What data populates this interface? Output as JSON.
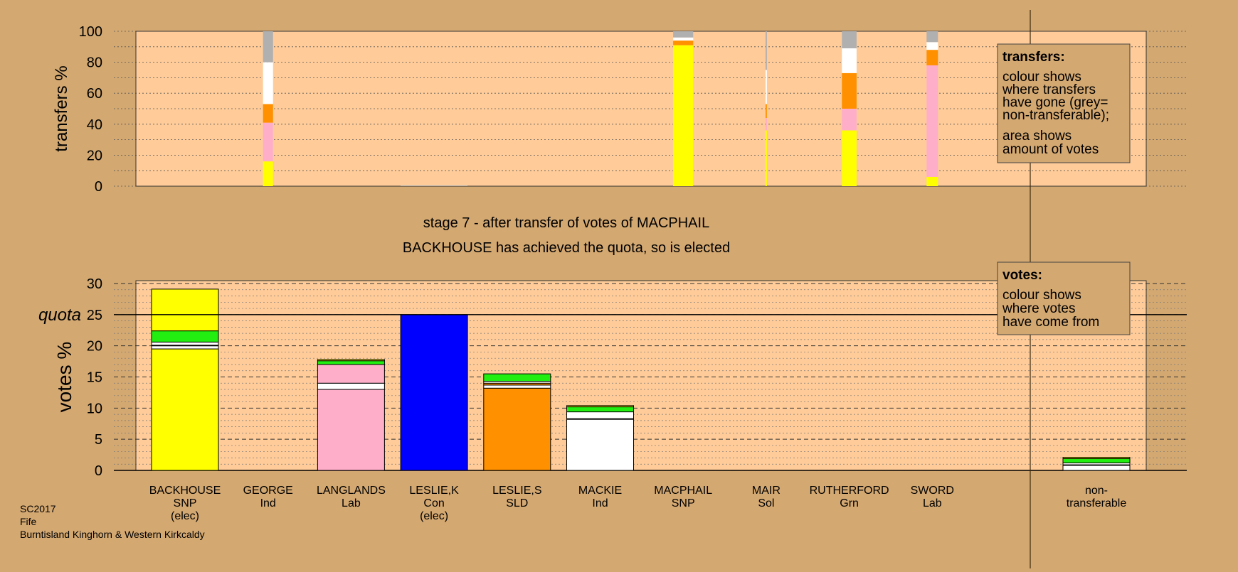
{
  "colors": {
    "background": "#d4a871",
    "plot_bg": "#ffcc99",
    "SNP": "#ffff00",
    "Lab": "#ffaec9",
    "Con": "#0000ff",
    "SLD": "#ff9000",
    "Ind": "#ffffff",
    "Grn": "#22ee11",
    "non_transferable": "#b0b0b0"
  },
  "headline": {
    "stage": "stage 7 - after transfer of votes of MACPHAIL",
    "result": "BACKHOUSE has achieved the quota, so is elected"
  },
  "footer": {
    "line1": "SC2017",
    "line2": "Fife",
    "line3": "Burntisland Kinghorn & Western Kirkcaldy"
  },
  "legend_transfers": {
    "title": "transfers:",
    "lines": [
      "colour shows",
      "where transfers",
      "have gone (grey=",
      "non-transferable);",
      "area shows",
      "amount of votes"
    ]
  },
  "legend_votes": {
    "title": "votes:",
    "lines": [
      "colour shows",
      "where votes",
      "have come from"
    ]
  },
  "chart_data": [
    {
      "type": "bar",
      "stacked": true,
      "ylabel": "transfers %",
      "ylim": [
        0,
        100
      ],
      "yticks": [
        0,
        20,
        40,
        60,
        80,
        100
      ],
      "grid": true,
      "categories": [
        "BACKHOUSE",
        "GEORGE",
        "LANGLANDS",
        "LESLIE,K",
        "LESLIE,S",
        "MACKIE",
        "MACPHAIL",
        "MAIR",
        "RUTHERFORD",
        "SWORD"
      ],
      "bars": [
        {
          "candidate": "GEORGE",
          "width_share": 0.15,
          "segments": [
            {
              "party": "SNP",
              "value": 16
            },
            {
              "party": "Lab",
              "value": 25
            },
            {
              "party": "SLD",
              "value": 12
            },
            {
              "party": "Ind",
              "value": 27
            },
            {
              "party": "non_transferable",
              "value": 20
            }
          ]
        },
        {
          "candidate": "LESLIE,K",
          "width_share": 1.0,
          "segments": [
            {
              "party": "non_transferable",
              "value": 0.5
            }
          ]
        },
        {
          "candidate": "MACPHAIL",
          "width_share": 0.3,
          "segments": [
            {
              "party": "SNP",
              "value": 91
            },
            {
              "party": "SLD",
              "value": 3
            },
            {
              "party": "Ind",
              "value": 2
            },
            {
              "party": "non_transferable",
              "value": 4
            }
          ]
        },
        {
          "candidate": "MAIR",
          "width_share": 0.02,
          "segments": [
            {
              "party": "SNP",
              "value": 36
            },
            {
              "party": "Lab",
              "value": 8
            },
            {
              "party": "SLD",
              "value": 9
            },
            {
              "party": "Ind",
              "value": 22
            },
            {
              "party": "non_transferable",
              "value": 25
            }
          ]
        },
        {
          "candidate": "RUTHERFORD",
          "width_share": 0.22,
          "segments": [
            {
              "party": "SNP",
              "value": 36
            },
            {
              "party": "Lab",
              "value": 14
            },
            {
              "party": "SLD",
              "value": 23
            },
            {
              "party": "Ind",
              "value": 16
            },
            {
              "party": "non_transferable",
              "value": 11
            }
          ]
        },
        {
          "candidate": "SWORD",
          "width_share": 0.17,
          "segments": [
            {
              "party": "SNP",
              "value": 6
            },
            {
              "party": "Lab",
              "value": 72
            },
            {
              "party": "SLD",
              "value": 10
            },
            {
              "party": "Ind",
              "value": 5
            },
            {
              "party": "non_transferable",
              "value": 7
            }
          ]
        }
      ]
    },
    {
      "type": "bar",
      "stacked": true,
      "ylabel": "votes %",
      "ylim": [
        0,
        30
      ],
      "yticks": [
        0,
        5,
        10,
        15,
        20,
        25,
        30
      ],
      "grid": true,
      "quota": 25,
      "quota_label": "quota",
      "categories": [
        {
          "name": "BACKHOUSE",
          "party": "SNP",
          "note": "(elec)"
        },
        {
          "name": "GEORGE",
          "party": "Ind",
          "note": ""
        },
        {
          "name": "LANGLANDS",
          "party": "Lab",
          "note": ""
        },
        {
          "name": "LESLIE,K",
          "party": "Con",
          "note": "(elec)"
        },
        {
          "name": "LESLIE,S",
          "party": "SLD",
          "note": ""
        },
        {
          "name": "MACKIE",
          "party": "Ind",
          "note": ""
        },
        {
          "name": "MACPHAIL",
          "party": "SNP",
          "note": ""
        },
        {
          "name": "MAIR",
          "party": "Sol",
          "note": ""
        },
        {
          "name": "RUTHERFORD",
          "party": "Grn",
          "note": ""
        },
        {
          "name": "SWORD",
          "party": "Lab",
          "note": ""
        },
        {
          "name": "non-\ntransferable",
          "party": "",
          "note": ""
        }
      ],
      "series": [
        {
          "candidate": "BACKHOUSE",
          "segments": [
            {
              "party": "SNP",
              "value": 19.5
            },
            {
              "party": "Ind",
              "value": 0.5
            },
            {
              "party": "Lab",
              "value": 0.1
            },
            {
              "party": "Ind",
              "value": 0.5
            },
            {
              "party": "Grn",
              "value": 1.8
            },
            {
              "party": "SNP",
              "value": 6.7
            }
          ]
        },
        {
          "candidate": "GEORGE",
          "segments": []
        },
        {
          "candidate": "LANGLANDS",
          "segments": [
            {
              "party": "Lab",
              "value": 13.0
            },
            {
              "party": "Ind",
              "value": 1.0
            },
            {
              "party": "Lab",
              "value": 3.0
            },
            {
              "party": "Grn",
              "value": 0.6
            },
            {
              "party": "SNP",
              "value": 0.2
            }
          ]
        },
        {
          "candidate": "LESLIE,K",
          "segments": [
            {
              "party": "Con",
              "value": 25.0
            }
          ]
        },
        {
          "candidate": "LESLIE,S",
          "segments": [
            {
              "party": "SLD",
              "value": 13.2
            },
            {
              "party": "Ind",
              "value": 0.5
            },
            {
              "party": "SLD",
              "value": 0.3
            },
            {
              "party": "Ind",
              "value": 0.3
            },
            {
              "party": "Grn",
              "value": 1.2
            }
          ]
        },
        {
          "candidate": "MACKIE",
          "segments": [
            {
              "party": "Ind",
              "value": 8.2
            },
            {
              "party": "Lab",
              "value": 0.1
            },
            {
              "party": "Ind",
              "value": 1.1
            },
            {
              "party": "Grn",
              "value": 0.8
            },
            {
              "party": "SNP",
              "value": 0.2
            }
          ]
        },
        {
          "candidate": "MACPHAIL",
          "segments": []
        },
        {
          "candidate": "MAIR",
          "segments": []
        },
        {
          "candidate": "RUTHERFORD",
          "segments": []
        },
        {
          "candidate": "SWORD",
          "segments": []
        },
        {
          "candidate": "non-transferable",
          "segments": [
            {
              "party": "Ind",
              "value": 0.8
            },
            {
              "party": "SLD",
              "value": 0.1
            },
            {
              "party": "Ind",
              "value": 0.3
            },
            {
              "party": "Grn",
              "value": 0.7
            },
            {
              "party": "SNP",
              "value": 0.2
            }
          ]
        }
      ]
    }
  ]
}
